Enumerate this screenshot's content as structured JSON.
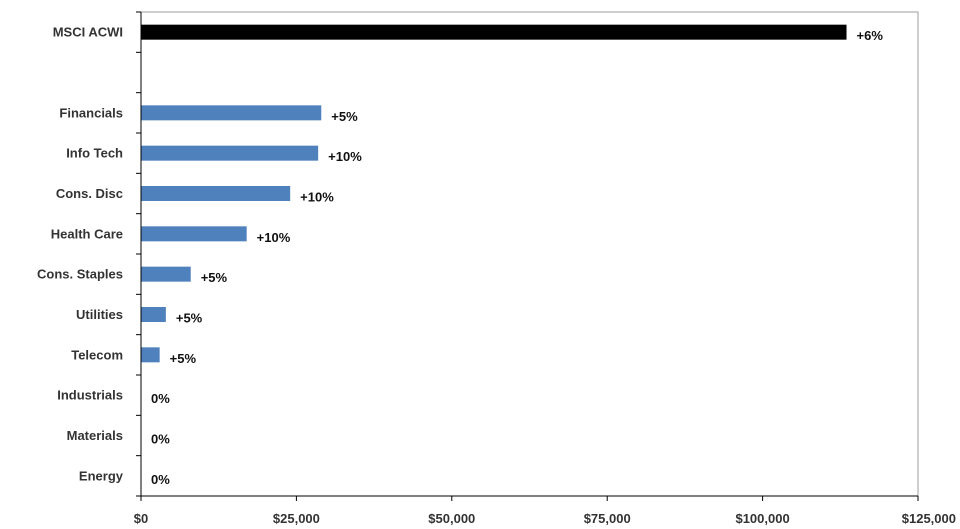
{
  "chart_data": {
    "type": "bar",
    "orientation": "horizontal",
    "categories": [
      "MSCI ACWI",
      "",
      "Financials",
      "Info Tech",
      "Cons. Disc",
      "Health Care",
      "Cons. Staples",
      "Utilities",
      "Telecom",
      "Industrials",
      "Materials",
      "Energy"
    ],
    "values": [
      113500,
      null,
      29000,
      28500,
      24000,
      17000,
      8000,
      4000,
      3000,
      0,
      0,
      0
    ],
    "data_labels": [
      "+6%",
      "",
      "+5%",
      "+10%",
      "+10%",
      "+10%",
      "+5%",
      "+5%",
      "+5%",
      "0%",
      "0%",
      "0%"
    ],
    "bar_colors": [
      "#000000",
      "",
      "#4f81bd",
      "#4f81bd",
      "#4f81bd",
      "#4f81bd",
      "#4f81bd",
      "#4f81bd",
      "#4f81bd",
      "#4f81bd",
      "#4f81bd",
      "#4f81bd"
    ],
    "xlim": [
      0,
      125000
    ],
    "xticks": [
      0,
      25000,
      50000,
      75000,
      100000,
      125000
    ],
    "xtick_labels": [
      "$0",
      "$25,000",
      "$50,000",
      "$75,000",
      "$100,000",
      "$125,000"
    ],
    "title": "",
    "xlabel": "",
    "ylabel": "",
    "grid": false,
    "legend": "none"
  }
}
